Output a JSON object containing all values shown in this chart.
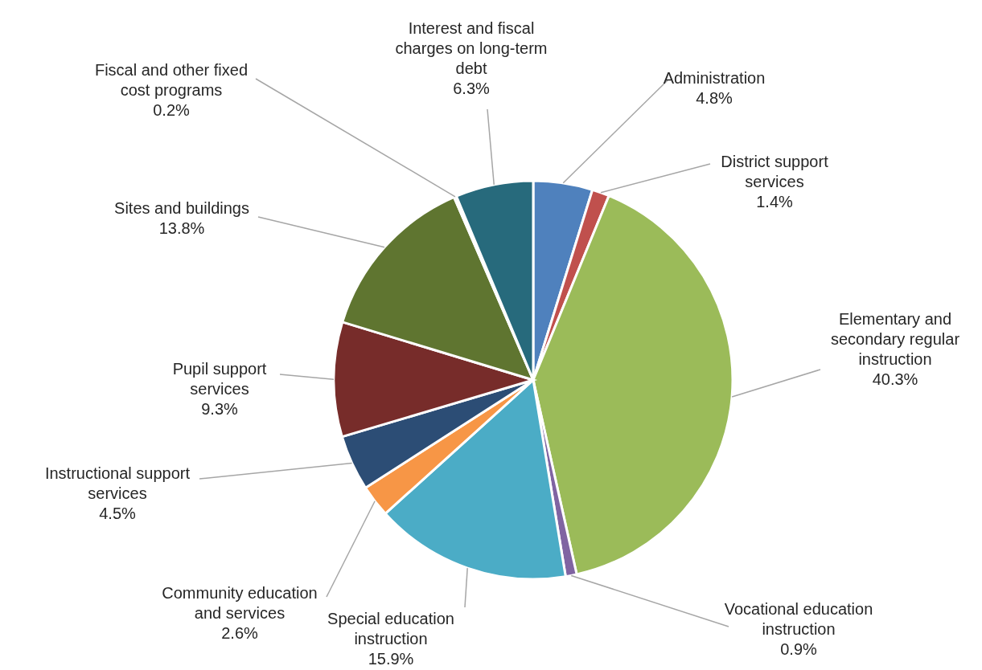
{
  "chart_data": {
    "type": "pie",
    "categories": [
      "Administration",
      "District support\nservices",
      "Elementary and\nsecondary regular\ninstruction",
      "Vocational education\ninstruction",
      "Special education\ninstruction",
      "Community education\nand services",
      "Instructional support\nservices",
      "Pupil support\nservices",
      "Sites and buildings",
      "Fiscal and other fixed\ncost programs",
      "Interest and fiscal\ncharges on long-term\ndebt"
    ],
    "values": [
      4.8,
      1.4,
      40.3,
      0.9,
      15.9,
      2.6,
      4.5,
      9.3,
      13.8,
      0.2,
      6.3
    ],
    "colors": [
      "#4f81bd",
      "#c0504d",
      "#9bbb59",
      "#8064a2",
      "#4bacc6",
      "#f79646",
      "#2c4d75",
      "#772c2a",
      "#5f7530",
      "#4d3b62",
      "#276a7c"
    ],
    "value_labels": [
      "4.8%",
      "1.4%",
      "40.3%",
      "0.9%",
      "15.9%",
      "2.6%",
      "4.5%",
      "9.3%",
      "13.8%",
      "0.2%",
      "6.3%"
    ]
  }
}
